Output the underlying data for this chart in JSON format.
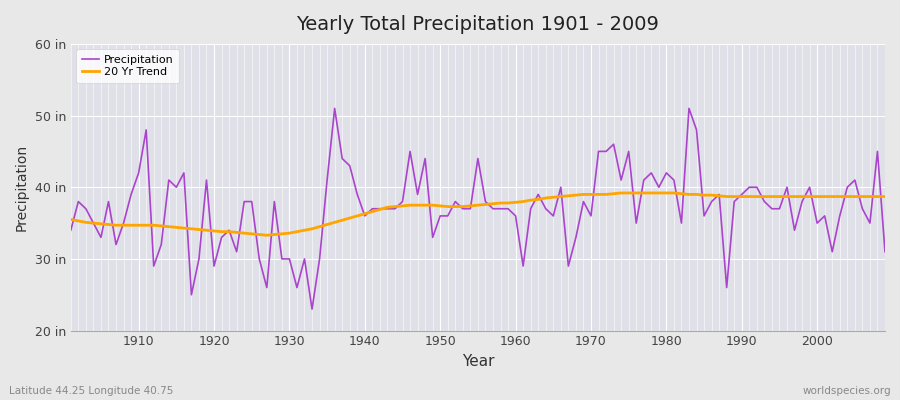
{
  "title": "Yearly Total Precipitation 1901 - 2009",
  "xlabel": "Year",
  "ylabel": "Precipitation",
  "subtitle_left": "Latitude 44.25 Longitude 40.75",
  "subtitle_right": "worldspecies.org",
  "ylim": [
    20,
    60
  ],
  "yticks": [
    20,
    30,
    40,
    50,
    60
  ],
  "ytick_labels": [
    "20 in",
    "30 in",
    "40 in",
    "50 in",
    "60 in"
  ],
  "years": [
    1901,
    1902,
    1903,
    1904,
    1905,
    1906,
    1907,
    1908,
    1909,
    1910,
    1911,
    1912,
    1913,
    1914,
    1915,
    1916,
    1917,
    1918,
    1919,
    1920,
    1921,
    1922,
    1923,
    1924,
    1925,
    1926,
    1927,
    1928,
    1929,
    1930,
    1931,
    1932,
    1933,
    1934,
    1935,
    1936,
    1937,
    1938,
    1939,
    1940,
    1941,
    1942,
    1943,
    1944,
    1945,
    1946,
    1947,
    1948,
    1949,
    1950,
    1951,
    1952,
    1953,
    1954,
    1955,
    1956,
    1957,
    1958,
    1959,
    1960,
    1961,
    1962,
    1963,
    1964,
    1965,
    1966,
    1967,
    1968,
    1969,
    1970,
    1971,
    1972,
    1973,
    1974,
    1975,
    1976,
    1977,
    1978,
    1979,
    1980,
    1981,
    1982,
    1983,
    1984,
    1985,
    1986,
    1987,
    1988,
    1989,
    1990,
    1991,
    1992,
    1993,
    1994,
    1995,
    1996,
    1997,
    1998,
    1999,
    2000,
    2001,
    2002,
    2003,
    2004,
    2005,
    2006,
    2007,
    2008,
    2009
  ],
  "precipitation": [
    34,
    38,
    37,
    35,
    33,
    38,
    32,
    35,
    39,
    42,
    48,
    29,
    32,
    41,
    40,
    42,
    25,
    30,
    41,
    29,
    33,
    34,
    31,
    38,
    38,
    30,
    26,
    38,
    30,
    30,
    26,
    30,
    23,
    30,
    41,
    51,
    44,
    43,
    39,
    36,
    37,
    37,
    37,
    37,
    38,
    45,
    39,
    44,
    33,
    36,
    36,
    38,
    37,
    37,
    44,
    38,
    37,
    37,
    37,
    36,
    29,
    37,
    39,
    37,
    36,
    40,
    29,
    33,
    38,
    36,
    45,
    45,
    46,
    41,
    45,
    35,
    41,
    42,
    40,
    42,
    41,
    35,
    51,
    48,
    36,
    38,
    39,
    26,
    38,
    39,
    40,
    40,
    38,
    37,
    37,
    40,
    34,
    38,
    40,
    35,
    36,
    31,
    36,
    40,
    41,
    37,
    35,
    45,
    31
  ],
  "trend": [
    35.5,
    35.3,
    35.1,
    35.0,
    34.9,
    34.8,
    34.7,
    34.7,
    34.7,
    34.7,
    34.7,
    34.7,
    34.6,
    34.5,
    34.4,
    34.3,
    34.2,
    34.1,
    34.0,
    33.9,
    33.8,
    33.8,
    33.7,
    33.6,
    33.5,
    33.4,
    33.3,
    33.4,
    33.5,
    33.6,
    33.8,
    34.0,
    34.2,
    34.5,
    34.8,
    35.1,
    35.4,
    35.7,
    36.0,
    36.3,
    36.6,
    36.9,
    37.2,
    37.3,
    37.4,
    37.5,
    37.5,
    37.5,
    37.5,
    37.4,
    37.3,
    37.3,
    37.3,
    37.4,
    37.5,
    37.6,
    37.7,
    37.8,
    37.8,
    37.9,
    38.0,
    38.2,
    38.3,
    38.5,
    38.6,
    38.7,
    38.8,
    38.9,
    39.0,
    39.0,
    39.0,
    39.0,
    39.1,
    39.2,
    39.2,
    39.2,
    39.2,
    39.2,
    39.2,
    39.2,
    39.2,
    39.1,
    39.0,
    39.0,
    38.9,
    38.9,
    38.8,
    38.7,
    38.7,
    38.7,
    38.7,
    38.7,
    38.7,
    38.7,
    38.7,
    38.7,
    38.7,
    38.7,
    38.7,
    38.7,
    38.7,
    38.7,
    38.7,
    38.7,
    38.7,
    38.7,
    38.7,
    38.7,
    38.7
  ],
  "precip_color": "#aa44cc",
  "trend_color": "#FFA500",
  "bg_color": "#e8e8e8",
  "plot_bg_color": "#e0e0e8",
  "grid_color": "#ffffff",
  "xticks": [
    1910,
    1920,
    1930,
    1940,
    1950,
    1960,
    1970,
    1980,
    1990,
    2000
  ],
  "legend_precip": "Precipitation",
  "legend_trend": "20 Yr Trend",
  "xlim_left": 1901,
  "xlim_right": 2009
}
